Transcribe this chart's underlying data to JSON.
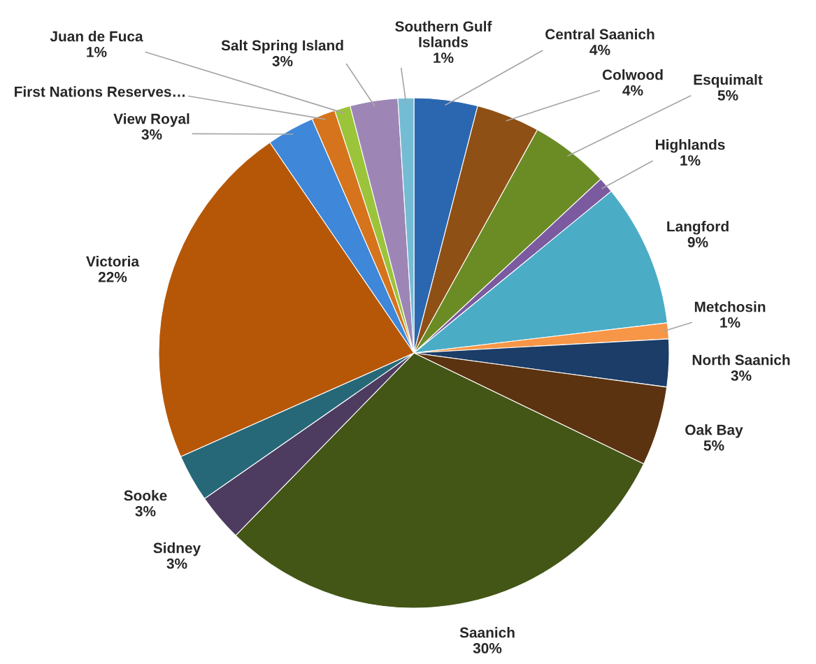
{
  "chart_data": {
    "type": "pie",
    "categories": [
      "Central Saanich",
      "Colwood",
      "Esquimalt",
      "Highlands",
      "Langford",
      "Metchosin",
      "North Saanich",
      "Oak Bay",
      "Saanich",
      "Sidney",
      "Sooke",
      "Victoria",
      "View Royal",
      "First Nations Reserves…",
      "Juan de Fuca",
      "Salt Spring Island",
      "Southern Gulf Islands"
    ],
    "values": [
      4,
      4,
      5,
      1,
      9,
      1,
      3,
      5,
      30,
      3,
      3,
      22,
      3,
      1.5,
      1,
      3,
      1
    ],
    "value_labels": [
      "4%",
      "4%",
      "5%",
      "1%",
      "9%",
      "1%",
      "3%",
      "5%",
      "30%",
      "3%",
      "3%",
      "22%",
      "3%",
      null,
      "1%",
      "3%",
      "1%"
    ],
    "colors": [
      "#2a67b0",
      "#8f5015",
      "#6b8c25",
      "#7b5aa0",
      "#4bacc6",
      "#f79646",
      "#1b3d67",
      "#5c3310",
      "#435616",
      "#4e3c60",
      "#276878",
      "#b65708",
      "#3f87d8",
      "#d5741d",
      "#9bc43a",
      "#9d86b5",
      "#74bcd3"
    ],
    "legend": false
  }
}
